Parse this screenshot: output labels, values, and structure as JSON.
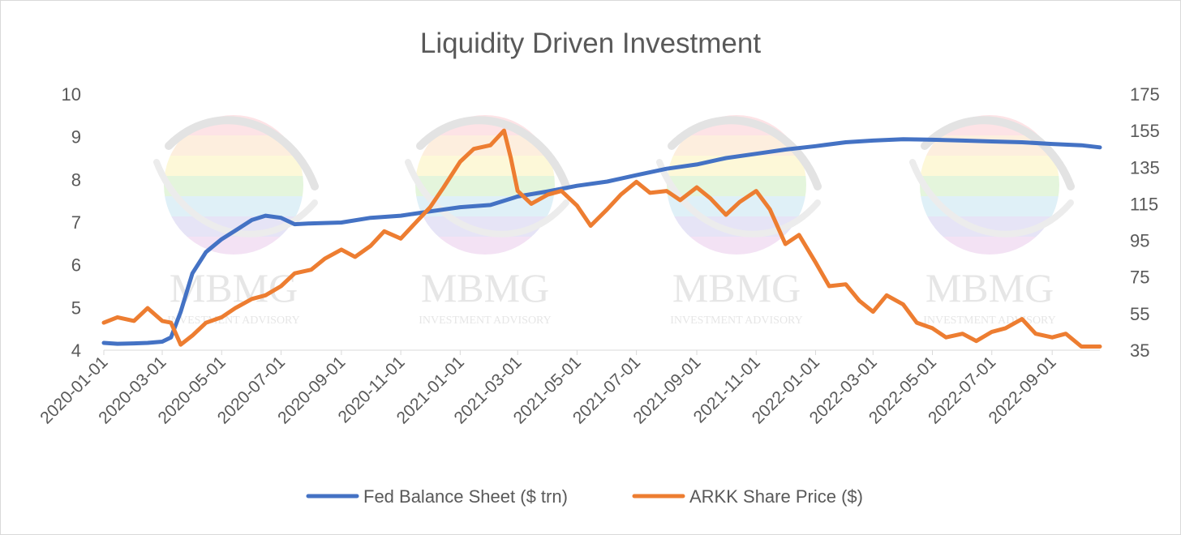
{
  "chart_data": {
    "type": "line",
    "title": "Liquidity Driven Investment",
    "watermark": {
      "brand": "MBMG",
      "tagline": "INVESTMENT ADVISORY"
    },
    "x_ticks": [
      "2020-01-01",
      "2020-03-01",
      "2020-05-01",
      "2020-07-01",
      "2020-09-01",
      "2020-11-01",
      "2021-01-01",
      "2021-03-01",
      "2021-05-01",
      "2021-07-01",
      "2021-09-01",
      "2021-11-01",
      "2022-01-01",
      "2022-03-01",
      "2022-05-01",
      "2022-07-01",
      "2022-09-01"
    ],
    "x_range": [
      "2020-01-01",
      "2022-10-20"
    ],
    "y_left": {
      "ticks": [
        "4",
        "5",
        "6",
        "7",
        "8",
        "9",
        "10"
      ],
      "min": 4,
      "max": 10
    },
    "y_right": {
      "ticks": [
        "35",
        "55",
        "75",
        "95",
        "115",
        "135",
        "155",
        "175"
      ],
      "min": 35,
      "max": 175
    },
    "legend_position": "bottom",
    "series": [
      {
        "name": "Fed Balance Sheet ($ trn)",
        "axis": "left",
        "color": "#4472c4",
        "points": [
          [
            "2020-01-01",
            4.17
          ],
          [
            "2020-01-15",
            4.15
          ],
          [
            "2020-02-01",
            4.16
          ],
          [
            "2020-02-15",
            4.17
          ],
          [
            "2020-03-01",
            4.2
          ],
          [
            "2020-03-10",
            4.3
          ],
          [
            "2020-03-20",
            4.9
          ],
          [
            "2020-04-01",
            5.8
          ],
          [
            "2020-04-15",
            6.3
          ],
          [
            "2020-05-01",
            6.6
          ],
          [
            "2020-05-15",
            6.8
          ],
          [
            "2020-06-01",
            7.05
          ],
          [
            "2020-06-15",
            7.15
          ],
          [
            "2020-07-01",
            7.1
          ],
          [
            "2020-07-15",
            6.95
          ],
          [
            "2020-08-01",
            6.97
          ],
          [
            "2020-09-01",
            6.99
          ],
          [
            "2020-10-01",
            7.1
          ],
          [
            "2020-11-01",
            7.15
          ],
          [
            "2020-12-01",
            7.25
          ],
          [
            "2021-01-01",
            7.35
          ],
          [
            "2021-02-01",
            7.4
          ],
          [
            "2021-03-01",
            7.6
          ],
          [
            "2021-04-01",
            7.72
          ],
          [
            "2021-05-01",
            7.85
          ],
          [
            "2021-06-01",
            7.95
          ],
          [
            "2021-07-01",
            8.1
          ],
          [
            "2021-08-01",
            8.25
          ],
          [
            "2021-09-01",
            8.35
          ],
          [
            "2021-10-01",
            8.5
          ],
          [
            "2021-11-01",
            8.6
          ],
          [
            "2021-12-01",
            8.7
          ],
          [
            "2022-01-01",
            8.78
          ],
          [
            "2022-02-01",
            8.87
          ],
          [
            "2022-03-01",
            8.91
          ],
          [
            "2022-04-01",
            8.94
          ],
          [
            "2022-05-01",
            8.93
          ],
          [
            "2022-06-01",
            8.91
          ],
          [
            "2022-07-01",
            8.89
          ],
          [
            "2022-08-01",
            8.87
          ],
          [
            "2022-09-01",
            8.83
          ],
          [
            "2022-10-01",
            8.8
          ],
          [
            "2022-10-20",
            8.75
          ]
        ]
      },
      {
        "name": "ARKK Share Price ($)",
        "axis": "right",
        "color": "#ed7d31",
        "points": [
          [
            "2020-01-01",
            50
          ],
          [
            "2020-01-15",
            53
          ],
          [
            "2020-02-01",
            51
          ],
          [
            "2020-02-15",
            58
          ],
          [
            "2020-03-01",
            51
          ],
          [
            "2020-03-10",
            50
          ],
          [
            "2020-03-20",
            38
          ],
          [
            "2020-04-01",
            43
          ],
          [
            "2020-04-15",
            50
          ],
          [
            "2020-05-01",
            53
          ],
          [
            "2020-05-15",
            58
          ],
          [
            "2020-06-01",
            63
          ],
          [
            "2020-06-15",
            65
          ],
          [
            "2020-07-01",
            70
          ],
          [
            "2020-07-15",
            77
          ],
          [
            "2020-08-01",
            79
          ],
          [
            "2020-08-15",
            85
          ],
          [
            "2020-09-01",
            90
          ],
          [
            "2020-09-15",
            86
          ],
          [
            "2020-10-01",
            92
          ],
          [
            "2020-10-15",
            100
          ],
          [
            "2020-11-01",
            96
          ],
          [
            "2020-11-15",
            104
          ],
          [
            "2020-12-01",
            113
          ],
          [
            "2020-12-15",
            124
          ],
          [
            "2021-01-01",
            138
          ],
          [
            "2021-01-15",
            145
          ],
          [
            "2021-02-01",
            147
          ],
          [
            "2021-02-15",
            155
          ],
          [
            "2021-02-22",
            140
          ],
          [
            "2021-03-01",
            122
          ],
          [
            "2021-03-15",
            115
          ],
          [
            "2021-04-01",
            120
          ],
          [
            "2021-04-15",
            122
          ],
          [
            "2021-05-01",
            114
          ],
          [
            "2021-05-15",
            103
          ],
          [
            "2021-06-01",
            112
          ],
          [
            "2021-06-15",
            120
          ],
          [
            "2021-07-01",
            127
          ],
          [
            "2021-07-15",
            121
          ],
          [
            "2021-08-01",
            122
          ],
          [
            "2021-08-15",
            117
          ],
          [
            "2021-09-01",
            124
          ],
          [
            "2021-09-15",
            118
          ],
          [
            "2021-10-01",
            109
          ],
          [
            "2021-10-15",
            116
          ],
          [
            "2021-11-01",
            122
          ],
          [
            "2021-11-15",
            112
          ],
          [
            "2021-12-01",
            93
          ],
          [
            "2021-12-15",
            98
          ],
          [
            "2022-01-01",
            83
          ],
          [
            "2022-01-15",
            70
          ],
          [
            "2022-02-01",
            71
          ],
          [
            "2022-02-15",
            62
          ],
          [
            "2022-03-01",
            56
          ],
          [
            "2022-03-15",
            65
          ],
          [
            "2022-04-01",
            60
          ],
          [
            "2022-04-15",
            50
          ],
          [
            "2022-05-01",
            47
          ],
          [
            "2022-05-15",
            42
          ],
          [
            "2022-06-01",
            44
          ],
          [
            "2022-06-15",
            40
          ],
          [
            "2022-07-01",
            45
          ],
          [
            "2022-07-15",
            47
          ],
          [
            "2022-08-01",
            52
          ],
          [
            "2022-08-15",
            44
          ],
          [
            "2022-09-01",
            42
          ],
          [
            "2022-09-15",
            44
          ],
          [
            "2022-10-01",
            37
          ],
          [
            "2022-10-20",
            37
          ]
        ]
      }
    ]
  }
}
